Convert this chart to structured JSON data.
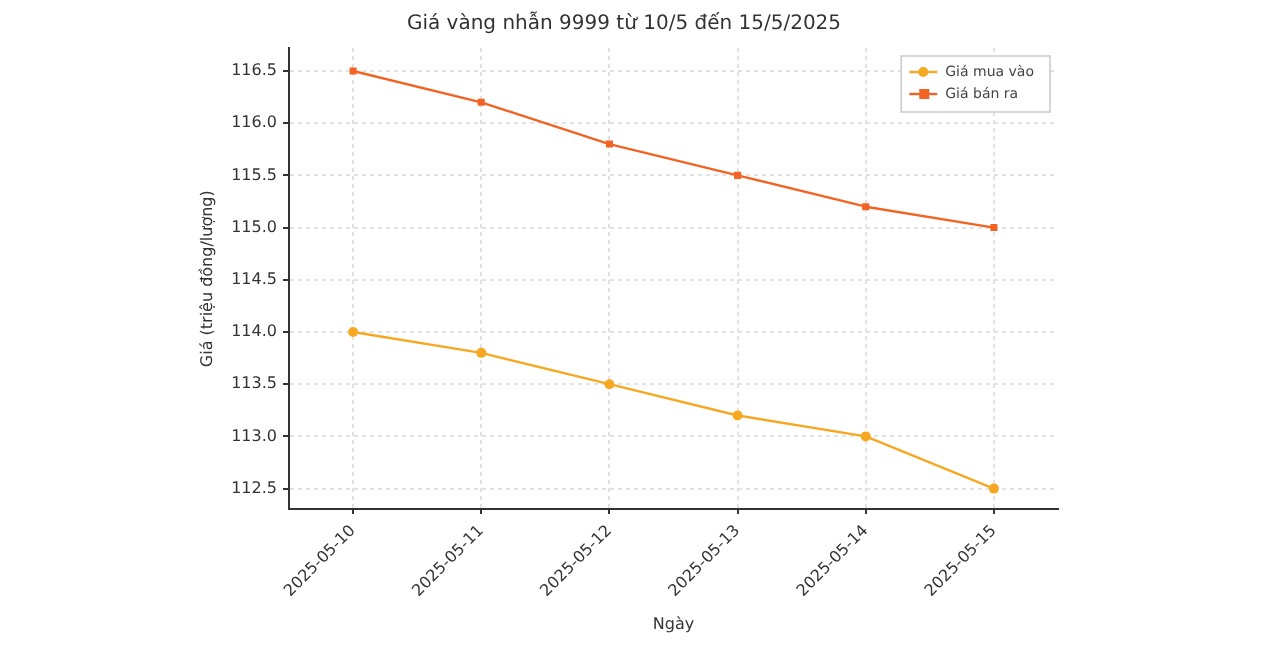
{
  "chart_data": {
    "type": "line",
    "title": "Giá vàng nhẫn 9999 từ 10/5 đến 15/5/2025",
    "xlabel": "Ngày",
    "ylabel": "Giá (triệu đồng/lượng)",
    "categories": [
      "2025-05-10",
      "2025-05-11",
      "2025-05-12",
      "2025-05-13",
      "2025-05-14",
      "2025-05-15"
    ],
    "series": [
      {
        "name": "Giá mua vào",
        "color": "#f7a823",
        "marker": "circle",
        "values": [
          114.0,
          113.8,
          113.5,
          113.2,
          113.0,
          112.5
        ]
      },
      {
        "name": "Giá bán ra",
        "color": "#f26424",
        "marker": "square",
        "values": [
          116.5,
          116.2,
          115.8,
          115.5,
          115.2,
          115.0
        ]
      }
    ],
    "ylim": [
      112.3,
      116.72
    ],
    "yticks": [
      112.5,
      {
        "value": 113,
        "label": "113.0"
      },
      113.5,
      {
        "value": 114,
        "label": "114.0"
      },
      114.5,
      {
        "value": 115,
        "label": "115.0"
      },
      115.5,
      {
        "value": 116,
        "label": "116.0"
      },
      116.5
    ],
    "grid": true,
    "legend": "top right",
    "line_style": "solid"
  }
}
